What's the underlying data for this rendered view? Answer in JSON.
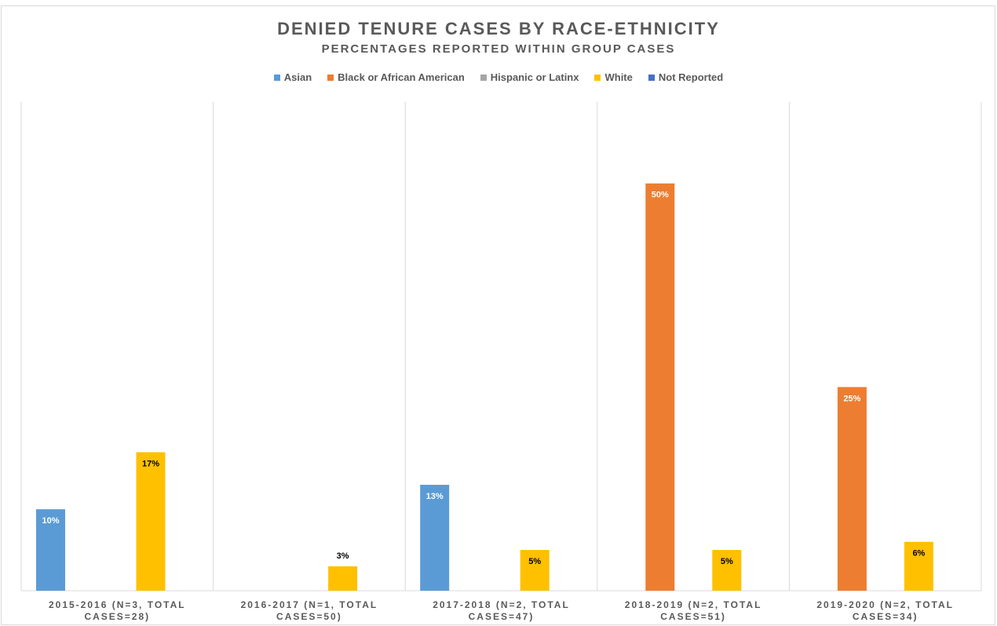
{
  "chart_data": {
    "type": "bar",
    "title": "DENIED TENURE CASES BY RACE-ETHNICITY",
    "subtitle": "PERCENTAGES REPORTED WITHIN GROUP CASES",
    "categories": [
      "2015-2016 (N=3, TOTAL CASES=28)",
      "2016-2017 (N=1, TOTAL CASES=50)",
      "2017-2018 (N=2, TOTAL CASES=47)",
      "2018-2019 (N=2, TOTAL CASES=51)",
      "2019-2020 (N=2, TOTAL CASES=34)"
    ],
    "series": [
      {
        "name": "Asian",
        "color": "#5b9bd5",
        "values": [
          10,
          null,
          13,
          null,
          null
        ],
        "value_labels": [
          "10%",
          null,
          "13%",
          null,
          null
        ]
      },
      {
        "name": "Black or African American",
        "color": "#ed7d31",
        "values": [
          null,
          null,
          null,
          50,
          25
        ],
        "value_labels": [
          null,
          null,
          null,
          "50%",
          "25%"
        ]
      },
      {
        "name": "Hispanic or Latinx",
        "color": "#a5a5a5",
        "values": [
          null,
          null,
          null,
          null,
          null
        ]
      },
      {
        "name": "White",
        "color": "#ffc000",
        "values": [
          17,
          3,
          5,
          5,
          6
        ],
        "value_labels": [
          "17%",
          "3%",
          "5%",
          "5%",
          "6%"
        ]
      },
      {
        "name": "Not Reported",
        "color": "#4472c4",
        "values": [
          null,
          null,
          null,
          null,
          null
        ]
      }
    ],
    "ylim": [
      0,
      60
    ],
    "legend": "top"
  }
}
